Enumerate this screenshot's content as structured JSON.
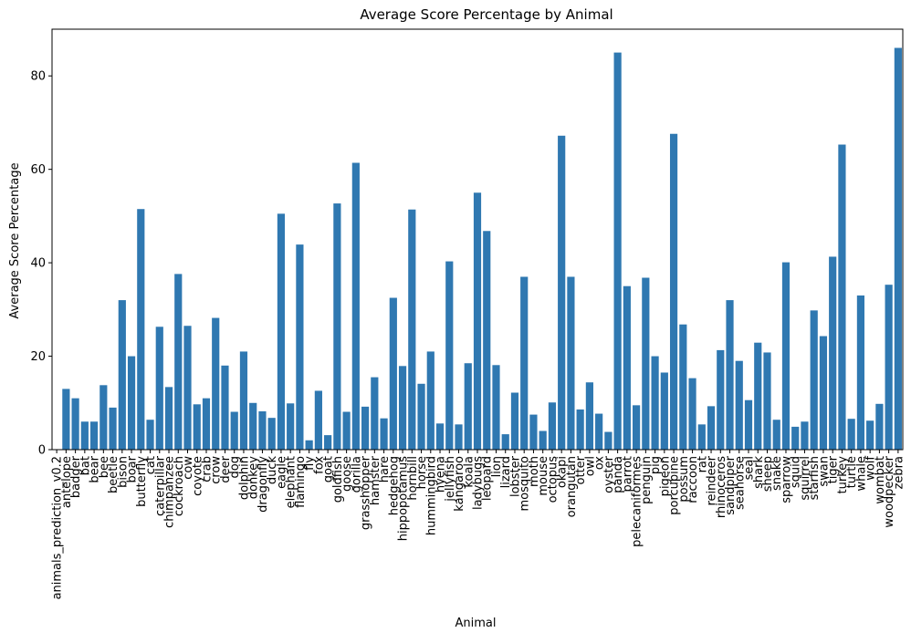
{
  "chart_data": {
    "type": "bar",
    "title": "Average Score Percentage by Animal",
    "xlabel": "Animal",
    "ylabel": "Average Score Percentage",
    "ylim": [
      0,
      90
    ],
    "yticks": [
      0,
      20,
      40,
      60,
      80
    ],
    "grid": false,
    "bar_color": "#2f78b1",
    "categories": [
      "animals_prediction_v0.2",
      "antelope",
      "badger",
      "bat",
      "bear",
      "bee",
      "beetle",
      "bison",
      "boar",
      "butterfly",
      "cat",
      "caterpillar",
      "chimpanzee",
      "cockroach",
      "cow",
      "coyote",
      "crab",
      "crow",
      "deer",
      "dog",
      "dolphin",
      "donkey",
      "dragonfly",
      "duck",
      "eagle",
      "elephant",
      "flamingo",
      "fly",
      "fox",
      "goat",
      "goldfish",
      "goose",
      "gorilla",
      "grasshopper",
      "hamster",
      "hare",
      "hedgehog",
      "hippopotamus",
      "hornbill",
      "horse",
      "hummingbird",
      "hyena",
      "jellyfish",
      "kangaroo",
      "koala",
      "ladybugs",
      "leopard",
      "lion",
      "lizard",
      "lobster",
      "mosquito",
      "moth",
      "mouse",
      "octopus",
      "okapi",
      "orangutan",
      "otter",
      "owl",
      "ox",
      "oyster",
      "panda",
      "parrot",
      "pelecaniformes",
      "penguin",
      "pig",
      "pigeon",
      "porcupine",
      "possum",
      "raccoon",
      "rat",
      "reindeer",
      "rhinoceros",
      "sandpiper",
      "seahorse",
      "seal",
      "shark",
      "sheep",
      "snake",
      "sparrow",
      "squid",
      "squirrel",
      "starfish",
      "swan",
      "tiger",
      "turkey",
      "turtle",
      "whale",
      "wolf",
      "wombat",
      "woodpecker",
      "zebra"
    ],
    "values": [
      0,
      13,
      11,
      6,
      6,
      13.8,
      9,
      32,
      20,
      51.5,
      6.4,
      26.3,
      13.4,
      37.6,
      26.5,
      9.7,
      11,
      28.2,
      18,
      8.1,
      21,
      10,
      8.2,
      6.8,
      50.5,
      9.9,
      43.9,
      2,
      12.6,
      3.1,
      52.7,
      8.1,
      61.4,
      9.2,
      15.5,
      6.7,
      32.5,
      17.9,
      51.4,
      14.1,
      21,
      5.6,
      40.3,
      5.4,
      18.5,
      55,
      46.8,
      18.1,
      3.3,
      12.2,
      37,
      7.5,
      4,
      10.1,
      67.2,
      37,
      8.6,
      14.4,
      7.7,
      3.8,
      85,
      35,
      9.5,
      36.8,
      20,
      16.5,
      67.6,
      26.8,
      15.3,
      5.4,
      9.3,
      21.3,
      32,
      19,
      10.6,
      22.9,
      20.8,
      6.4,
      40.1,
      4.9,
      6,
      29.8,
      24.3,
      41.3,
      65.3,
      6.6,
      33,
      6.2,
      9.8,
      35.3,
      86
    ]
  }
}
